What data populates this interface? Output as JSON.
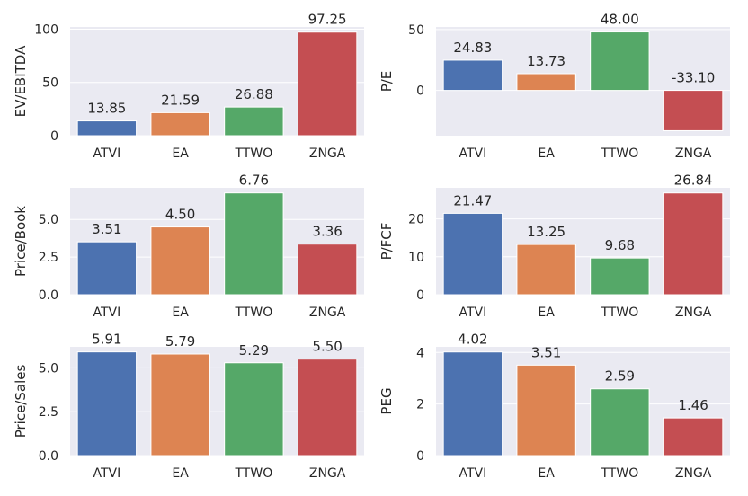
{
  "chart_data": [
    {
      "type": "bar",
      "categories": [
        "ATVI",
        "EA",
        "TTWO",
        "ZNGA"
      ],
      "values": [
        13.85,
        21.59,
        26.88,
        97.25
      ],
      "data_labels": [
        "13.85",
        "21.59",
        "26.88",
        "97.25"
      ],
      "ylabel": "EV/EBITDA",
      "ylim": [
        0,
        102.1
      ],
      "yticks": [
        0,
        50,
        100
      ],
      "ytick_labels": [
        "0",
        "50",
        "100"
      ],
      "grid": true
    },
    {
      "type": "bar",
      "categories": [
        "ATVI",
        "EA",
        "TTWO",
        "ZNGA"
      ],
      "values": [
        24.83,
        13.73,
        48.0,
        -33.1
      ],
      "data_labels": [
        "24.83",
        "13.73",
        "48.00",
        "-33.10"
      ],
      "ylabel": "P/E",
      "ylim": [
        -37.2,
        52.1
      ],
      "yticks": [
        0,
        50
      ],
      "ytick_labels": [
        "0",
        "50"
      ],
      "grid": true
    },
    {
      "type": "bar",
      "categories": [
        "ATVI",
        "EA",
        "TTWO",
        "ZNGA"
      ],
      "values": [
        3.51,
        4.5,
        6.76,
        3.36
      ],
      "data_labels": [
        "3.51",
        "4.50",
        "6.76",
        "3.36"
      ],
      "ylabel": "Price/Book",
      "ylim": [
        0,
        7.1
      ],
      "yticks": [
        0,
        2.5,
        5
      ],
      "ytick_labels": [
        "0.0",
        "2.5",
        "5.0"
      ],
      "grid": true
    },
    {
      "type": "bar",
      "categories": [
        "ATVI",
        "EA",
        "TTWO",
        "ZNGA"
      ],
      "values": [
        21.47,
        13.25,
        9.68,
        26.84
      ],
      "data_labels": [
        "21.47",
        "13.25",
        "9.68",
        "26.84"
      ],
      "ylabel": "P/FCF",
      "ylim": [
        0,
        28.2
      ],
      "yticks": [
        0,
        10,
        20
      ],
      "ytick_labels": [
        "0",
        "10",
        "20"
      ],
      "grid": true
    },
    {
      "type": "bar",
      "categories": [
        "ATVI",
        "EA",
        "TTWO",
        "ZNGA"
      ],
      "values": [
        5.91,
        5.79,
        5.29,
        5.5
      ],
      "data_labels": [
        "5.91",
        "5.79",
        "5.29",
        "5.50"
      ],
      "ylabel": "Price/Sales",
      "ylim": [
        0,
        6.2
      ],
      "yticks": [
        0,
        2.5,
        5
      ],
      "ytick_labels": [
        "0.0",
        "2.5",
        "5.0"
      ],
      "grid": true
    },
    {
      "type": "bar",
      "categories": [
        "ATVI",
        "EA",
        "TTWO",
        "ZNGA"
      ],
      "values": [
        4.02,
        3.51,
        2.59,
        1.46
      ],
      "data_labels": [
        "4.02",
        "3.51",
        "2.59",
        "1.46"
      ],
      "ylabel": "PEG",
      "ylim": [
        0,
        4.22
      ],
      "yticks": [
        0,
        2,
        4
      ],
      "ytick_labels": [
        "0",
        "2",
        "4"
      ],
      "grid": true
    }
  ],
  "colors": {
    "background": "#eaeaf2",
    "grid": "#ffffff",
    "bars": [
      "#4c72b0",
      "#dd8452",
      "#55a868",
      "#c44e52"
    ]
  }
}
